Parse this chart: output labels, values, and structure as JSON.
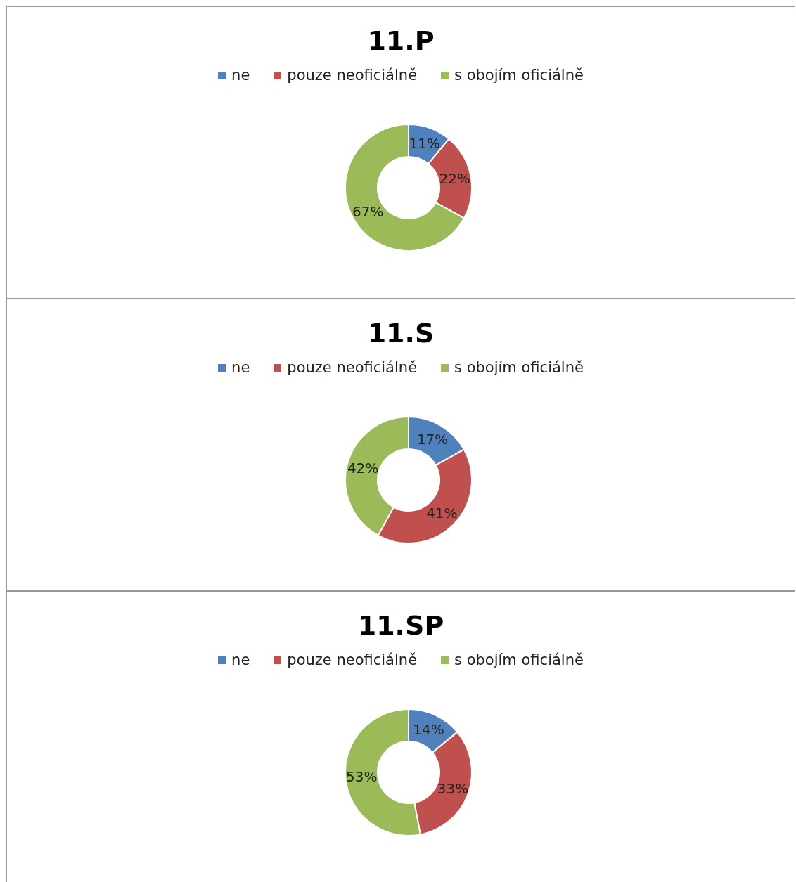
{
  "chart_data": [
    {
      "type": "donut",
      "title": "11.P",
      "categories": [
        "ne",
        "pouze neoficiálně",
        "s obojím oficiálně"
      ],
      "values": [
        11,
        22,
        67
      ],
      "colors": [
        "#4f81bd",
        "#c0504d",
        "#9bbb59"
      ],
      "value_labels": [
        "11%",
        "22%",
        "67%"
      ],
      "legend": "top"
    },
    {
      "type": "donut",
      "title": "11.S",
      "categories": [
        "ne",
        "pouze neoficiálně",
        "s obojím oficiálně"
      ],
      "values": [
        17,
        41,
        42
      ],
      "colors": [
        "#4f81bd",
        "#c0504d",
        "#9bbb59"
      ],
      "value_labels": [
        "17%",
        "41%",
        "42%"
      ],
      "legend": "top"
    },
    {
      "type": "donut",
      "title": "11.SP",
      "categories": [
        "ne",
        "pouze neoficiálně",
        "s obojím oficiálně"
      ],
      "values": [
        14,
        33,
        53
      ],
      "colors": [
        "#4f81bd",
        "#c0504d",
        "#9bbb59"
      ],
      "value_labels": [
        "14%",
        "33%",
        "53%"
      ],
      "legend": "top"
    }
  ]
}
